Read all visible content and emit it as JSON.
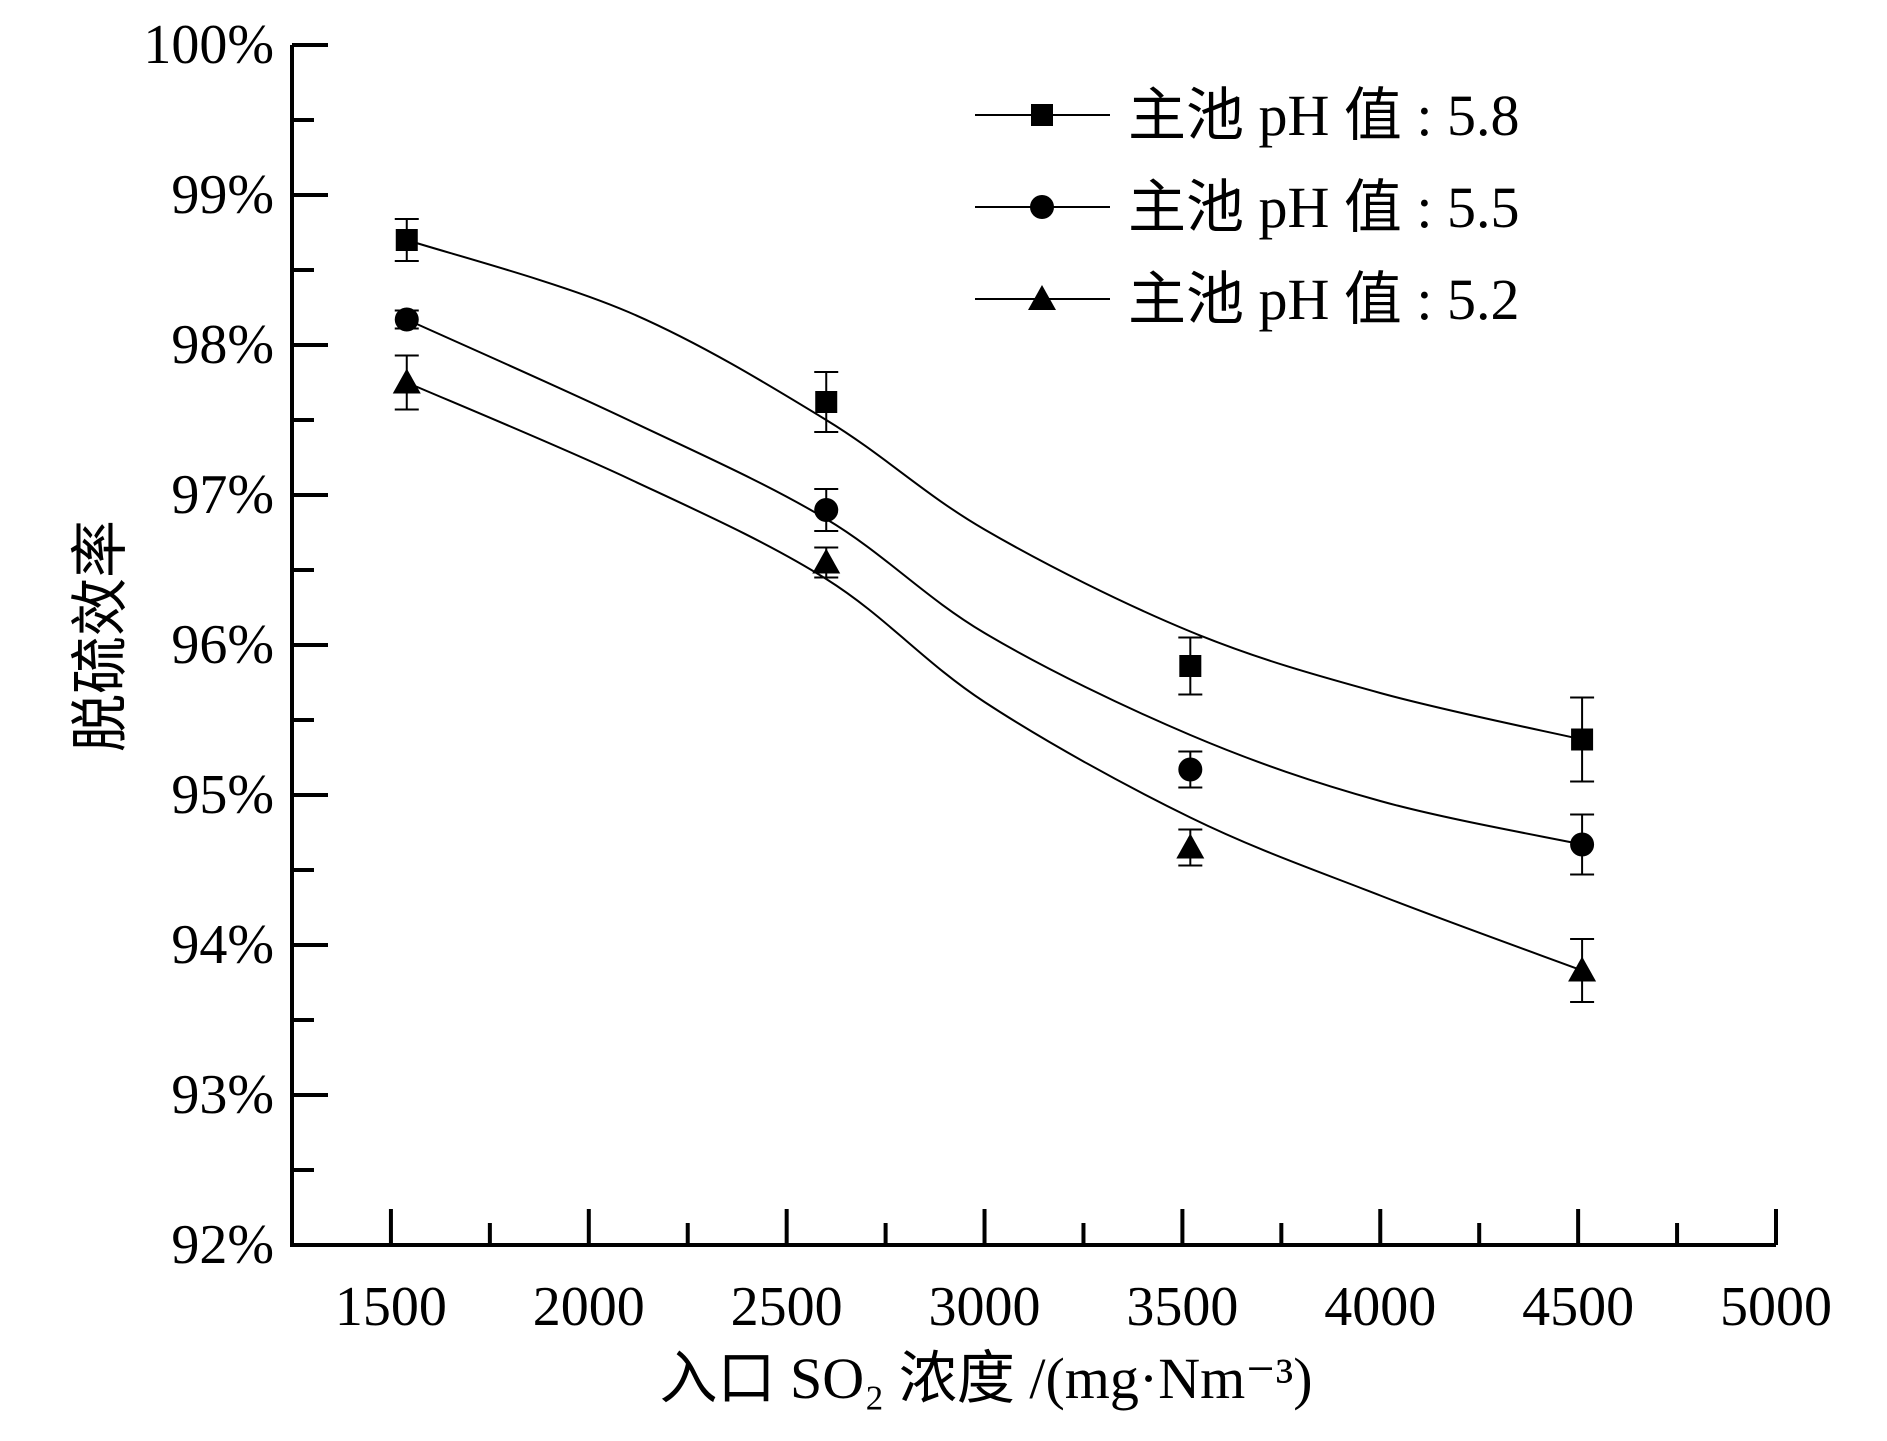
{
  "chart_data": {
    "type": "line",
    "title": "",
    "xlabel": "入口 SO₂ 浓度 /(mg·Nm⁻³)",
    "ylabel": "脱硫效率",
    "xlim": [
      1250,
      5000
    ],
    "ylim": [
      92,
      100
    ],
    "x_ticks": [
      1500,
      2000,
      2500,
      3000,
      3500,
      4000,
      4500,
      5000
    ],
    "x_tick_labels": [
      "1500",
      "2000",
      "2500",
      "3000",
      "3500",
      "4000",
      "4500",
      "5000"
    ],
    "y_ticks": [
      92,
      93,
      94,
      95,
      96,
      97,
      98,
      99,
      100
    ],
    "y_tick_labels": [
      "92%",
      "93%",
      "94%",
      "95%",
      "96%",
      "97%",
      "98%",
      "99%",
      "100%"
    ],
    "grid": false,
    "legend_position": "top-right",
    "series": [
      {
        "name": "主池 pH 值 : 5.8",
        "marker": "square",
        "x": [
          1540,
          2600,
          3520,
          4510
        ],
        "values": [
          98.7,
          97.62,
          95.86,
          95.37
        ],
        "errors": [
          0.14,
          0.2,
          0.19,
          0.28
        ],
        "fit_x": [
          1540,
          2100,
          2600,
          3000,
          3520,
          4000,
          4510
        ],
        "fit_y": [
          98.7,
          98.22,
          97.5,
          96.77,
          96.09,
          95.68,
          95.37
        ]
      },
      {
        "name": "主池 pH 值 : 5.5",
        "marker": "circle",
        "x": [
          1540,
          2600,
          3520,
          4510
        ],
        "values": [
          98.17,
          96.9,
          95.17,
          94.67
        ],
        "errors": [
          0.06,
          0.14,
          0.12,
          0.2
        ],
        "fit_x": [
          1540,
          2100,
          2600,
          3000,
          3520,
          4000,
          4510
        ],
        "fit_y": [
          98.17,
          97.5,
          96.84,
          96.08,
          95.4,
          94.96,
          94.67
        ]
      },
      {
        "name": "主池 pH 值 : 5.2",
        "marker": "triangle",
        "x": [
          1540,
          2600,
          3520,
          4510
        ],
        "values": [
          97.75,
          96.55,
          94.65,
          93.83
        ],
        "errors": [
          0.18,
          0.1,
          0.12,
          0.21
        ],
        "fit_x": [
          1540,
          2100,
          2600,
          3000,
          3520,
          4000,
          4510
        ],
        "fit_y": [
          97.75,
          97.11,
          96.44,
          95.62,
          94.85,
          94.33,
          93.83
        ]
      }
    ]
  }
}
